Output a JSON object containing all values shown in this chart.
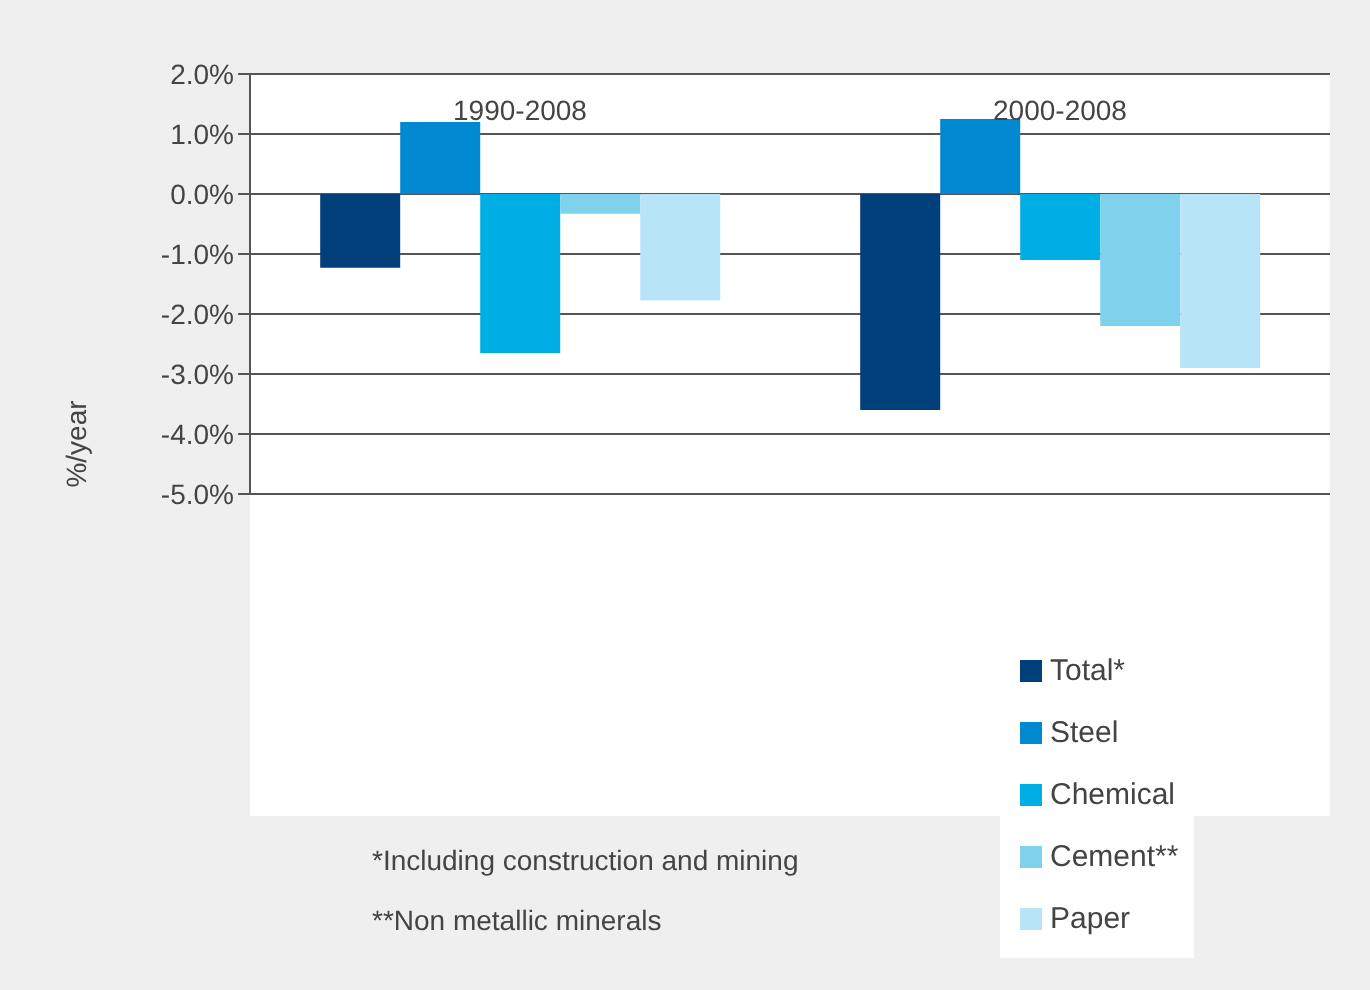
{
  "chart_data": {
    "type": "bar",
    "ylabel": "%/year",
    "categories": [
      "1990-2008",
      "2000-2008"
    ],
    "series": [
      {
        "name": "Total*",
        "color": "#003f7a",
        "values": [
          -1.23,
          -3.6
        ]
      },
      {
        "name": "Steel",
        "color": "#0089d0",
        "values": [
          1.2,
          1.25
        ]
      },
      {
        "name": "Chemical",
        "color": "#00aee6",
        "values": [
          -2.65,
          -1.1
        ]
      },
      {
        "name": "Cement**",
        "color": "#7fd2ec",
        "values": [
          -0.33,
          -2.2
        ]
      },
      {
        "name": "Paper",
        "color": "#b8e4f8",
        "values": [
          -1.77,
          -2.9
        ]
      }
    ],
    "ylim": [
      -5,
      2
    ],
    "yticks": [
      {
        "value": -5,
        "label": "-5.0%"
      },
      {
        "value": -4,
        "label": "-4.0%"
      },
      {
        "value": -3,
        "label": "-3.0%"
      },
      {
        "value": -2,
        "label": "-2.0%"
      },
      {
        "value": -1,
        "label": "-1.0%"
      },
      {
        "value": 0,
        "label": "0.0%"
      },
      {
        "value": 1,
        "label": "1.0%"
      },
      {
        "value": 2,
        "label": "2.0%"
      }
    ],
    "grid": "y",
    "legend": "bottom right",
    "annotations": [
      "*Including construction and mining",
      "**Non metallic minerals"
    ]
  }
}
